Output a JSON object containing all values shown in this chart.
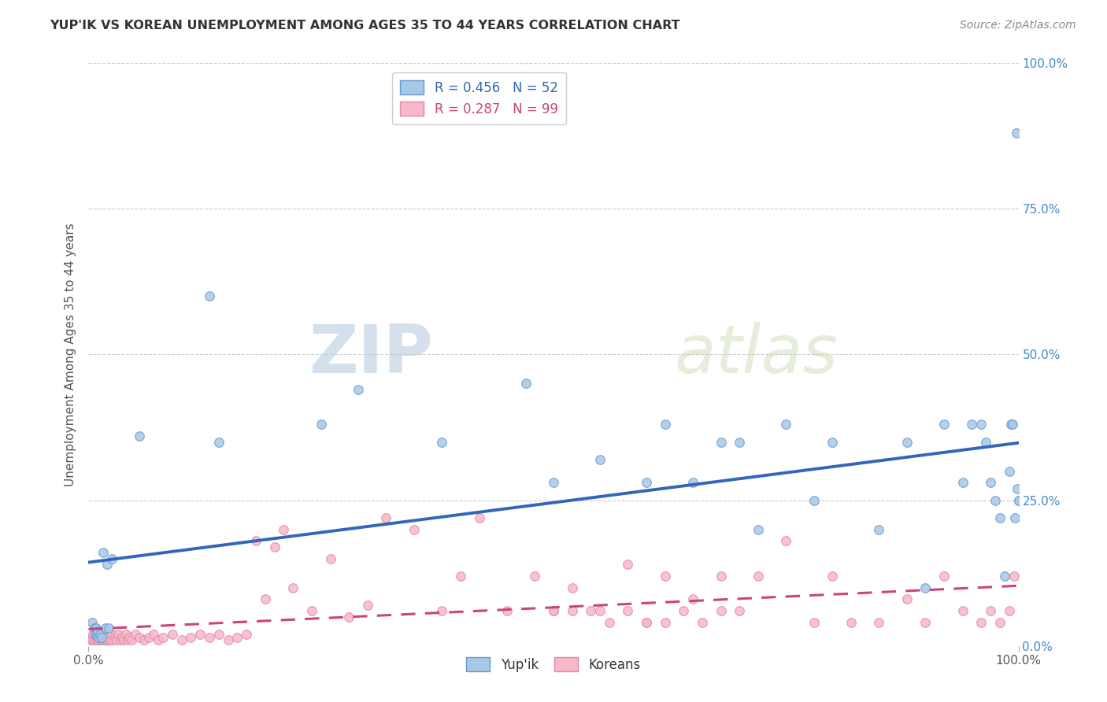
{
  "title": "YUP'IK VS KOREAN UNEMPLOYMENT AMONG AGES 35 TO 44 YEARS CORRELATION CHART",
  "source_text": "Source: ZipAtlas.com",
  "ylabel": "Unemployment Among Ages 35 to 44 years",
  "xlim": [
    0,
    1
  ],
  "ylim": [
    0,
    1
  ],
  "xtick_labels": [
    "0.0%",
    "100.0%"
  ],
  "ytick_labels": [
    "0.0%",
    "25.0%",
    "50.0%",
    "75.0%",
    "100.0%"
  ],
  "ytick_positions": [
    0.0,
    0.25,
    0.5,
    0.75,
    1.0
  ],
  "grid_color": "#cccccc",
  "background_color": "#ffffff",
  "legend_label1": "Yup'ik",
  "legend_label2": "Koreans",
  "r1": "0.456",
  "n1": "52",
  "r2": "0.287",
  "n2": "99",
  "color_blue": "#a8c8e8",
  "color_blue_edge": "#6699cc",
  "color_blue_line": "#3366bb",
  "color_pink": "#f8b8c8",
  "color_pink_edge": "#dd88aa",
  "color_pink_line": "#cc4477",
  "yupik_x": [
    0.004,
    0.006,
    0.007,
    0.008,
    0.009,
    0.01,
    0.011,
    0.012,
    0.014,
    0.016,
    0.018,
    0.02,
    0.022,
    0.025,
    0.055,
    0.13,
    0.14,
    0.25,
    0.29,
    0.38,
    0.47,
    0.5,
    0.55,
    0.6,
    0.62,
    0.65,
    0.68,
    0.7,
    0.72,
    0.75,
    0.78,
    0.8,
    0.85,
    0.88,
    0.9,
    0.92,
    0.94,
    0.95,
    0.96,
    0.965,
    0.97,
    0.975,
    0.98,
    0.985,
    0.99,
    0.992,
    0.994,
    0.996,
    0.998,
    0.999,
    1.0,
    1.0
  ],
  "yupik_y": [
    0.04,
    0.03,
    0.02,
    0.03,
    0.02,
    0.025,
    0.015,
    0.02,
    0.015,
    0.16,
    0.03,
    0.14,
    0.03,
    0.15,
    0.36,
    0.6,
    0.35,
    0.38,
    0.44,
    0.35,
    0.45,
    0.28,
    0.32,
    0.28,
    0.38,
    0.28,
    0.35,
    0.35,
    0.2,
    0.38,
    0.25,
    0.35,
    0.2,
    0.35,
    0.1,
    0.38,
    0.28,
    0.38,
    0.38,
    0.35,
    0.28,
    0.25,
    0.22,
    0.12,
    0.3,
    0.38,
    0.38,
    0.22,
    0.88,
    0.27,
    0.25,
    0.25
  ],
  "korean_x": [
    0.002,
    0.003,
    0.004,
    0.005,
    0.006,
    0.007,
    0.008,
    0.009,
    0.01,
    0.011,
    0.012,
    0.013,
    0.014,
    0.015,
    0.016,
    0.017,
    0.018,
    0.019,
    0.02,
    0.021,
    0.022,
    0.023,
    0.025,
    0.026,
    0.028,
    0.03,
    0.032,
    0.034,
    0.036,
    0.038,
    0.04,
    0.042,
    0.044,
    0.046,
    0.05,
    0.055,
    0.06,
    0.065,
    0.07,
    0.075,
    0.08,
    0.09,
    0.1,
    0.11,
    0.12,
    0.13,
    0.14,
    0.15,
    0.16,
    0.17,
    0.18,
    0.19,
    0.2,
    0.21,
    0.22,
    0.24,
    0.26,
    0.28,
    0.3,
    0.32,
    0.35,
    0.38,
    0.4,
    0.42,
    0.45,
    0.48,
    0.5,
    0.52,
    0.55,
    0.58,
    0.6,
    0.62,
    0.65,
    0.68,
    0.7,
    0.72,
    0.75,
    0.78,
    0.8,
    0.82,
    0.85,
    0.88,
    0.9,
    0.92,
    0.94,
    0.96,
    0.97,
    0.98,
    0.99,
    0.995,
    0.5,
    0.52,
    0.54,
    0.56,
    0.58,
    0.6,
    0.62,
    0.64,
    0.66,
    0.68
  ],
  "korean_y": [
    0.01,
    0.015,
    0.01,
    0.02,
    0.01,
    0.015,
    0.02,
    0.01,
    0.015,
    0.01,
    0.02,
    0.01,
    0.015,
    0.01,
    0.02,
    0.01,
    0.015,
    0.01,
    0.02,
    0.01,
    0.015,
    0.01,
    0.02,
    0.01,
    0.015,
    0.01,
    0.02,
    0.01,
    0.015,
    0.01,
    0.02,
    0.01,
    0.015,
    0.01,
    0.02,
    0.015,
    0.01,
    0.015,
    0.02,
    0.01,
    0.015,
    0.02,
    0.01,
    0.015,
    0.02,
    0.015,
    0.02,
    0.01,
    0.015,
    0.02,
    0.18,
    0.08,
    0.17,
    0.2,
    0.1,
    0.06,
    0.15,
    0.05,
    0.07,
    0.22,
    0.2,
    0.06,
    0.12,
    0.22,
    0.06,
    0.12,
    0.06,
    0.1,
    0.06,
    0.14,
    0.04,
    0.12,
    0.08,
    0.12,
    0.06,
    0.12,
    0.18,
    0.04,
    0.12,
    0.04,
    0.04,
    0.08,
    0.04,
    0.12,
    0.06,
    0.04,
    0.06,
    0.04,
    0.06,
    0.12,
    0.06,
    0.06,
    0.06,
    0.04,
    0.06,
    0.04,
    0.04,
    0.06,
    0.04,
    0.06
  ]
}
